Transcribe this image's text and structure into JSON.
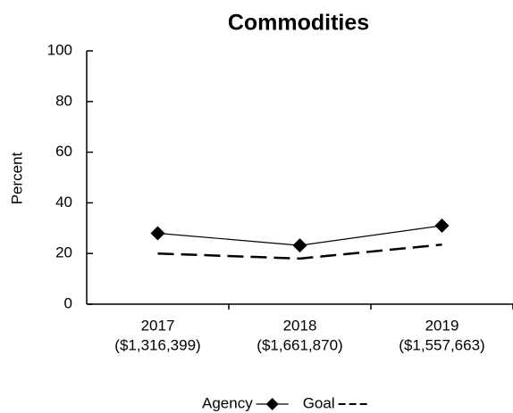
{
  "chart_data": {
    "type": "line",
    "title": "Commodities",
    "y_label": "Percent",
    "categories": [
      "2017",
      "2018",
      "2019"
    ],
    "category_amounts": [
      "($1,316,399)",
      "($1,661,870)",
      "($1,557,663)"
    ],
    "series": [
      {
        "name": "Agency",
        "color": "#000000",
        "marker": "diamond",
        "dashed": false,
        "values": [
          28,
          23.2,
          31
        ]
      },
      {
        "name": "Goal",
        "color": "#000000",
        "marker": "none",
        "dashed": true,
        "values": [
          20,
          18,
          23.5
        ]
      }
    ],
    "ylim": [
      0,
      100
    ],
    "yticks": [
      0,
      20,
      40,
      60,
      80,
      100
    ],
    "grid": false,
    "legend": "bottom"
  }
}
